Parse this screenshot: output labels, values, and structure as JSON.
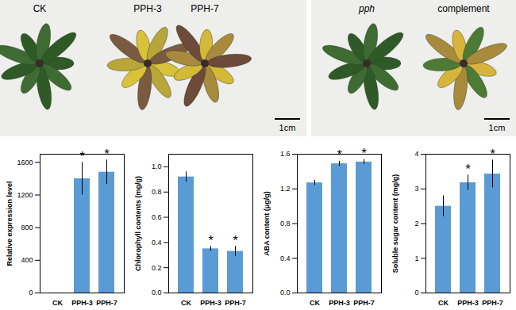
{
  "photos": [
    {
      "plants": [
        "CK",
        "PPH-3",
        "PPH-7"
      ],
      "scale_bar": "1cm"
    },
    {
      "plants": [
        "pph",
        "complement"
      ],
      "scale_bar": "1cm"
    }
  ],
  "chart_data": [
    {
      "type": "bar",
      "y_label": "Relative expression level",
      "categories": [
        "CK",
        "PPH-3",
        "PPH-7"
      ],
      "values": [
        1,
        1400,
        1480
      ],
      "errors": [
        0,
        200,
        150
      ],
      "significance": [
        null,
        "*",
        "*"
      ],
      "color": "#5b9bd5",
      "ylim": [
        0,
        1700
      ],
      "yticks": [
        0,
        400,
        800,
        1200,
        1600
      ],
      "grid": false
    },
    {
      "type": "bar",
      "y_label": "Chlorophyll contents (mg/g)",
      "categories": [
        "CK",
        "PPH-3",
        "PPH-7"
      ],
      "values": [
        0.92,
        0.35,
        0.33
      ],
      "errors": [
        0.04,
        0.02,
        0.04
      ],
      "significance": [
        null,
        "*",
        "*"
      ],
      "color": "#5b9bd5",
      "ylim": [
        0,
        1.1
      ],
      "yticks": [
        {
          "value": 0,
          "label": "0.0"
        },
        0.2,
        0.4,
        0.6,
        0.8,
        {
          "value": 1,
          "label": "1.0"
        }
      ],
      "grid": false
    },
    {
      "type": "bar",
      "y_label": "ABA content (μg/g)",
      "categories": [
        "CK",
        "PPH-3",
        "PPH-7"
      ],
      "values": [
        1.27,
        1.49,
        1.51
      ],
      "errors": [
        0.03,
        0.03,
        0.03
      ],
      "significance": [
        null,
        "*",
        "*"
      ],
      "color": "#5b9bd5",
      "ylim": [
        0,
        1.6
      ],
      "yticks": [
        {
          "value": 0,
          "label": "0.0"
        },
        0.4,
        0.8,
        1.2,
        1.6
      ],
      "grid": false
    },
    {
      "type": "bar",
      "y_label": "Soluble sugar content (mg/g)",
      "categories": [
        "CK",
        "PPH-3",
        "PPH-7"
      ],
      "values": [
        2.5,
        3.18,
        3.43
      ],
      "errors": [
        0.3,
        0.22,
        0.4
      ],
      "significance": [
        null,
        "*",
        "*"
      ],
      "color": "#5b9bd5",
      "ylim": [
        0,
        4
      ],
      "yticks": [
        0,
        1,
        2,
        3,
        4
      ],
      "grid": false
    }
  ]
}
